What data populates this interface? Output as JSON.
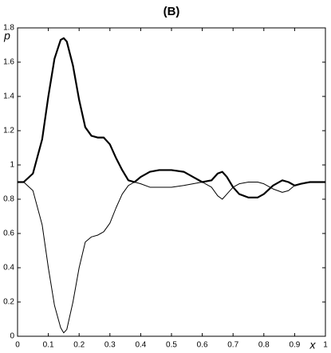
{
  "chart_data": {
    "type": "line",
    "title": "(B)",
    "x_label": "x",
    "y_label": "p",
    "x": [
      0,
      0.02,
      0.05,
      0.08,
      0.1,
      0.12,
      0.14,
      0.15,
      0.16,
      0.18,
      0.2,
      0.22,
      0.24,
      0.26,
      0.28,
      0.3,
      0.32,
      0.34,
      0.36,
      0.38,
      0.4,
      0.43,
      0.46,
      0.5,
      0.54,
      0.57,
      0.6,
      0.63,
      0.65,
      0.665,
      0.68,
      0.7,
      0.72,
      0.75,
      0.78,
      0.8,
      0.83,
      0.86,
      0.88,
      0.9,
      0.92,
      0.95,
      1
    ],
    "series": [
      {
        "color": "#000000",
        "line_width": 2.2,
        "values": [
          0.9,
          0.9,
          0.95,
          1.15,
          1.4,
          1.62,
          1.73,
          1.74,
          1.72,
          1.58,
          1.38,
          1.22,
          1.17,
          1.16,
          1.16,
          1.12,
          1.04,
          0.97,
          0.91,
          0.9,
          0.93,
          0.96,
          0.97,
          0.97,
          0.96,
          0.93,
          0.9,
          0.91,
          0.95,
          0.96,
          0.93,
          0.87,
          0.83,
          0.81,
          0.81,
          0.83,
          0.88,
          0.91,
          0.9,
          0.88,
          0.89,
          0.9,
          0.9
        ]
      },
      {
        "color": "#000000",
        "line_width": 1,
        "values": [
          0.9,
          0.9,
          0.85,
          0.65,
          0.4,
          0.18,
          0.05,
          0.02,
          0.04,
          0.2,
          0.4,
          0.55,
          0.58,
          0.59,
          0.61,
          0.66,
          0.75,
          0.83,
          0.88,
          0.9,
          0.89,
          0.87,
          0.87,
          0.87,
          0.88,
          0.89,
          0.9,
          0.87,
          0.82,
          0.8,
          0.83,
          0.87,
          0.89,
          0.9,
          0.9,
          0.89,
          0.86,
          0.84,
          0.85,
          0.88,
          0.89,
          0.9,
          0.9
        ]
      }
    ],
    "xlim": [
      0,
      1
    ],
    "xticks": [
      0,
      0.1,
      0.2,
      0.3,
      0.4,
      0.5,
      0.6,
      0.7,
      0.8,
      0.9,
      1
    ],
    "ylim": [
      0,
      1.8
    ],
    "yticks": [
      0,
      0.2,
      0.4,
      0.6,
      0.8,
      1,
      1.2,
      1.4,
      1.6,
      1.8
    ],
    "grid": false
  }
}
